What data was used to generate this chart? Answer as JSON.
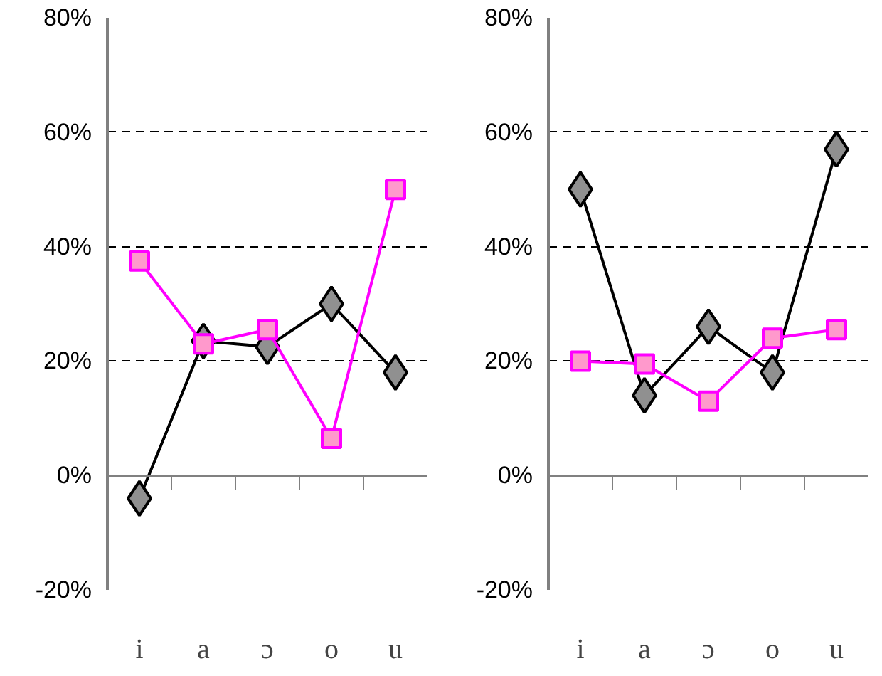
{
  "chart_data": [
    {
      "type": "line",
      "categories": [
        "i",
        "a",
        "ɔ",
        "o",
        "u"
      ],
      "ylim": [
        -20,
        80
      ],
      "yticks": [
        {
          "value": -20,
          "label": "-20%"
        },
        {
          "value": 0,
          "label": "0%"
        },
        {
          "value": 20,
          "label": "20%"
        },
        {
          "value": 40,
          "label": "40%"
        },
        {
          "value": 60,
          "label": "60%"
        },
        {
          "value": 80,
          "label": "80%"
        }
      ],
      "grid": "y",
      "series": [
        {
          "color": "#000000",
          "marker": "diamond",
          "values": [
            -4,
            23.5,
            22.5,
            30,
            18
          ]
        },
        {
          "color": "#ff00ff",
          "marker": "square",
          "values": [
            37.5,
            23,
            25.5,
            6.5,
            50
          ]
        }
      ]
    },
    {
      "type": "line",
      "categories": [
        "i",
        "a",
        "ɔ",
        "o",
        "u"
      ],
      "ylim": [
        -20,
        80
      ],
      "yticks": [
        {
          "value": -20,
          "label": "-20%"
        },
        {
          "value": 0,
          "label": "0%"
        },
        {
          "value": 20,
          "label": "20%"
        },
        {
          "value": 40,
          "label": "40%"
        },
        {
          "value": 60,
          "label": "60%"
        },
        {
          "value": 80,
          "label": "80%"
        }
      ],
      "grid": "y",
      "series": [
        {
          "color": "#000000",
          "marker": "diamond",
          "values": [
            50,
            14,
            26,
            18,
            57
          ]
        },
        {
          "color": "#ff00ff",
          "marker": "square",
          "values": [
            20,
            19.5,
            13,
            24,
            25.5
          ]
        }
      ]
    }
  ]
}
